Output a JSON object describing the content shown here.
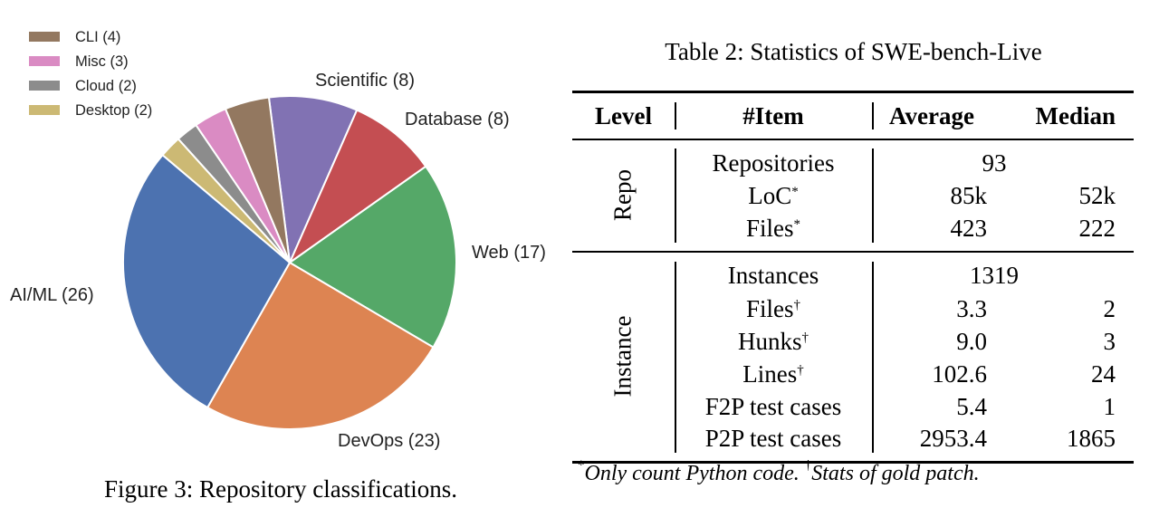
{
  "figure": {
    "caption": "Figure 3: Repository classifications.",
    "chart_data": {
      "type": "pie",
      "title": "",
      "slices": [
        {
          "label": "Scientific (8)",
          "name": "Scientific",
          "value": 8,
          "color": "#8172B3"
        },
        {
          "label": "Database (8)",
          "name": "Database",
          "value": 8,
          "color": "#C44E52"
        },
        {
          "label": "Web (17)",
          "name": "Web",
          "value": 17,
          "color": "#55A868"
        },
        {
          "label": "DevOps (23)",
          "name": "DevOps",
          "value": 23,
          "color": "#DD8452"
        },
        {
          "label": "AI/ML (26)",
          "name": "AI/ML",
          "value": 26,
          "color": "#4C72B0"
        },
        {
          "label": "Desktop (2)",
          "name": "Desktop",
          "value": 2,
          "color": "#CCB974"
        },
        {
          "label": "Cloud (2)",
          "name": "Cloud",
          "value": 2,
          "color": "#8C8C8C"
        },
        {
          "label": "Misc (3)",
          "name": "Misc",
          "value": 3,
          "color": "#DA8BC3"
        },
        {
          "label": "CLI (4)",
          "name": "CLI",
          "value": 4,
          "color": "#937860"
        }
      ],
      "legend": [
        "CLI (4)",
        "Misc (3)",
        "Cloud (2)",
        "Desktop (2)"
      ],
      "legend_placement": "top-left"
    }
  },
  "table": {
    "title": "Table 2: Statistics of SWE-bench-Live",
    "headers": [
      "Level",
      "#Item",
      "Average",
      "Median"
    ],
    "groups": [
      {
        "level": "Repo",
        "rows": [
          {
            "item": "Repositories",
            "sup": "",
            "merged": "93"
          },
          {
            "item": "LoC",
            "sup": "*",
            "average": "85k",
            "median": "52k"
          },
          {
            "item": "Files",
            "sup": "*",
            "average": "423",
            "median": "222"
          }
        ]
      },
      {
        "level": "Instance",
        "rows": [
          {
            "item": "Instances",
            "sup": "",
            "merged": "1319"
          },
          {
            "item": "Files",
            "sup": "†",
            "average": "3.3",
            "median": "2"
          },
          {
            "item": "Hunks",
            "sup": "†",
            "average": "9.0",
            "median": "3"
          },
          {
            "item": "Lines",
            "sup": "†",
            "average": "102.6",
            "median": "24"
          },
          {
            "item": "F2P test cases",
            "sup": "",
            "average": "5.4",
            "median": "1"
          },
          {
            "item": "P2P test cases",
            "sup": "",
            "average": "2953.4",
            "median": "1865"
          }
        ]
      }
    ],
    "footnote": {
      "mark1": "*",
      "text1": "Only count Python code.",
      "mark2": "†",
      "text2": "Stats of gold patch."
    }
  }
}
